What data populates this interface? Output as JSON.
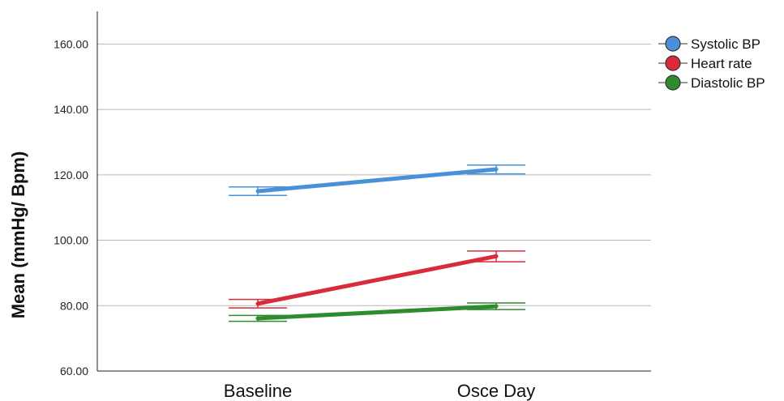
{
  "chart_data": {
    "type": "line",
    "title": "",
    "xlabel": "",
    "ylabel": "Mean (mmHg/ Bpm)",
    "categories": [
      "Baseline",
      "Osce Day"
    ],
    "ylim": [
      60,
      170
    ],
    "yticks": [
      60,
      80,
      100,
      120,
      140,
      160
    ],
    "ytick_labels": [
      "60.00",
      "80.00",
      "100.00",
      "120.00",
      "140.00",
      "160.00"
    ],
    "grid": true,
    "legend_position": "top-right",
    "series": [
      {
        "name": "Systolic BP",
        "color": "#4a90d9",
        "values": [
          115.0,
          121.7
        ],
        "error_low": [
          113.7,
          120.3
        ],
        "error_high": [
          116.3,
          123.0
        ]
      },
      {
        "name": "Heart rate",
        "color": "#d92b3a",
        "values": [
          80.6,
          95.1
        ],
        "error_low": [
          79.3,
          93.4
        ],
        "error_high": [
          81.9,
          96.7
        ]
      },
      {
        "name": "Diastolic BP",
        "color": "#2e8b2e",
        "values": [
          76.1,
          79.8
        ],
        "error_low": [
          75.2,
          78.8
        ],
        "error_high": [
          77.0,
          80.8
        ]
      }
    ]
  }
}
